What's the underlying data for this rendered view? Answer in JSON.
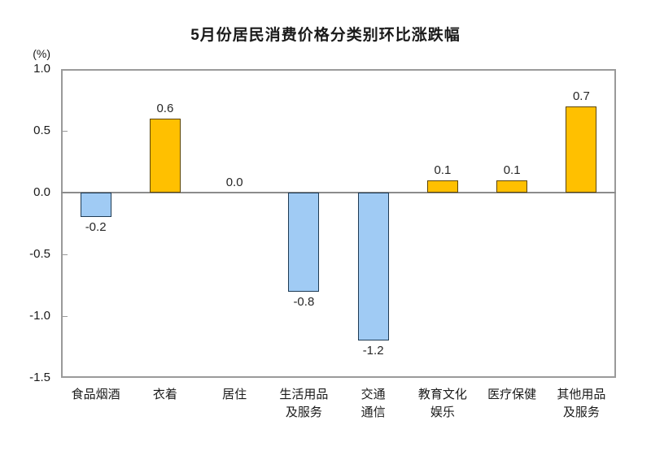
{
  "title": "5月份居民消费价格分类别环比涨跌幅",
  "unit_label": "(%)",
  "chart_data": {
    "type": "bar",
    "title": "5月份居民消费价格分类别环比涨跌幅",
    "ylabel": "(%)",
    "categories": [
      "食品烟酒",
      "衣着",
      "居住",
      "生活用品\n及服务",
      "交通\n通信",
      "教育文化\n娱乐",
      "医疗保健",
      "其他用品\n及服务"
    ],
    "values": [
      -0.2,
      0.6,
      0.0,
      -0.8,
      -1.2,
      0.1,
      0.1,
      0.7
    ],
    "value_labels": [
      "-0.2",
      "0.6",
      "0.0",
      "-0.8",
      "-1.2",
      "0.1",
      "0.1",
      "0.7"
    ],
    "ylim": [
      -1.5,
      1.0
    ],
    "yticks": [
      "1.0",
      "0.5",
      "0.0",
      "-0.5",
      "-1.0",
      "-1.5"
    ],
    "ytick_values": [
      1.0,
      0.5,
      0.0,
      -0.5,
      -1.0,
      -1.5
    ],
    "grid": false,
    "legend": false,
    "colors": {
      "positive_fill": "#FFC000",
      "positive_border": "#5C4500",
      "negative_fill": "#A0CBF4",
      "negative_border": "#1F3B54",
      "frame": "#9A9A9A",
      "zero_line": "#8C8C8C",
      "text": "#1A1A1A"
    }
  }
}
